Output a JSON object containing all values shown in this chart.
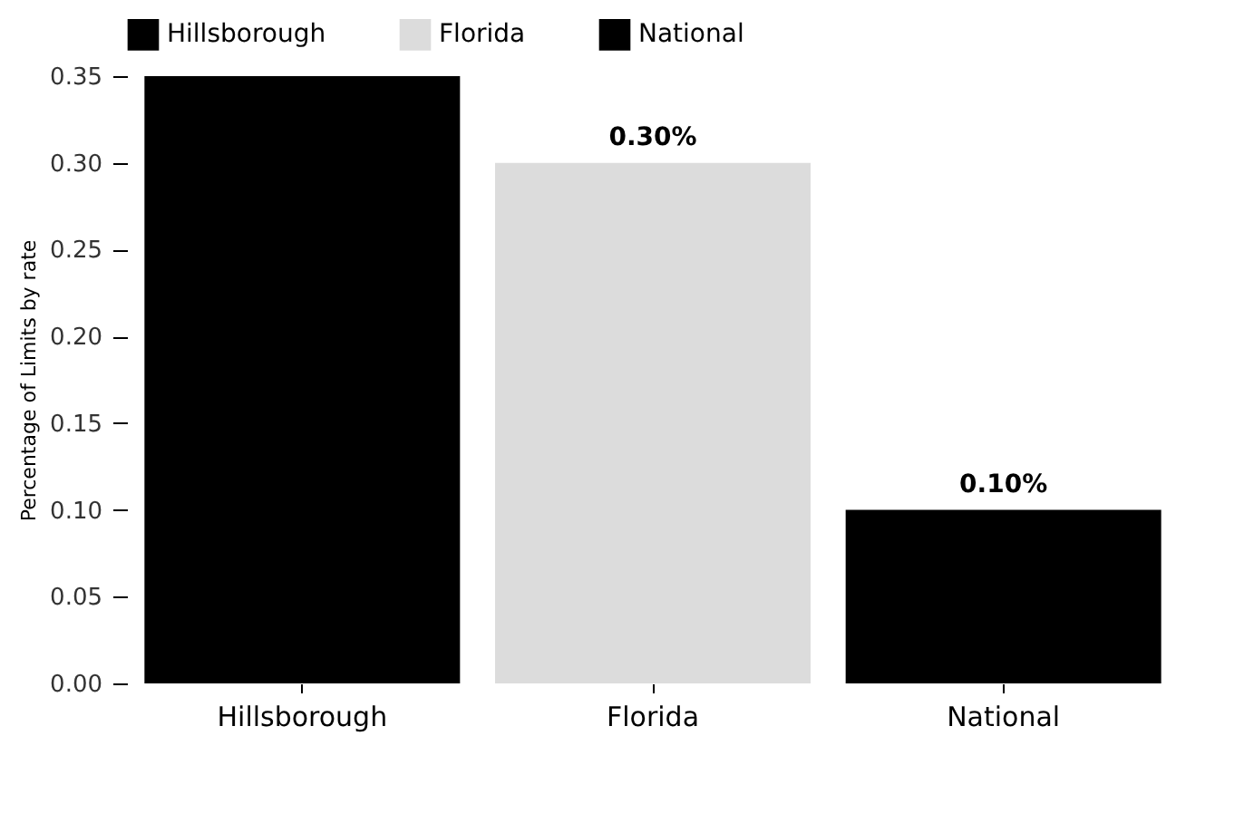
{
  "chart_data": {
    "type": "bar",
    "ylabel": "Percentage of Limits by rate",
    "categories": [
      "Hillsborough",
      "Florida",
      "National"
    ],
    "series": [
      {
        "name": "Hillsborough",
        "color": "#000000",
        "values": [
          0.35,
          null,
          null
        ]
      },
      {
        "name": "Florida",
        "color": "#dcdcdc",
        "values": [
          null,
          0.3,
          null
        ],
        "value_labels": [
          null,
          "0.30%",
          null
        ]
      },
      {
        "name": "National",
        "color": "#000000",
        "values": [
          null,
          null,
          0.1
        ],
        "value_labels": [
          null,
          null,
          "0.10%"
        ]
      }
    ],
    "ylim": [
      0,
      0.35
    ],
    "yticks": [
      "0.00",
      "0.05",
      "0.10",
      "0.15",
      "0.20",
      "0.25",
      "0.30",
      "0.35"
    ],
    "legend": "top",
    "grid": false
  }
}
